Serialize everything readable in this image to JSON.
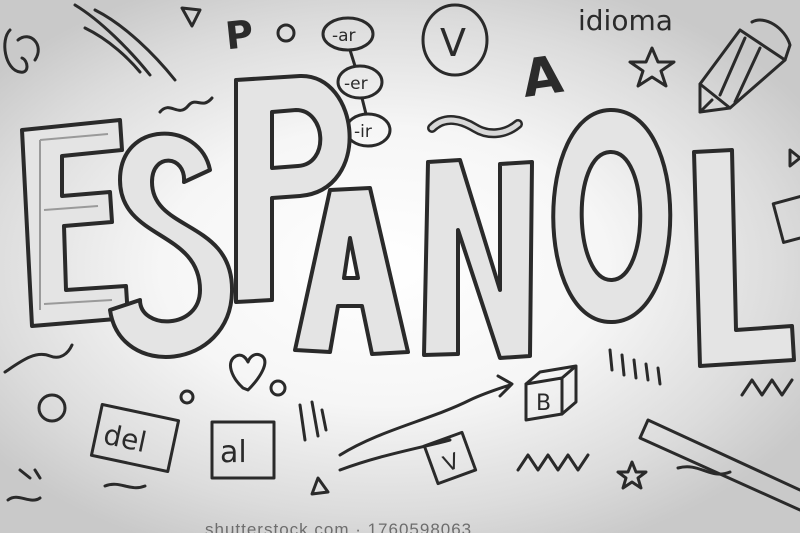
{
  "headline": [
    "E",
    "S",
    "P",
    "A",
    "Ñ",
    "O",
    "L"
  ],
  "doodle_words": {
    "idioma": "idioma",
    "ar": "-ar",
    "er": "-er",
    "ir": "-ir",
    "del": "del",
    "al": "al",
    "block_letter": "B",
    "check_v": "V",
    "check_v2": "V",
    "letter_p": "P",
    "letter_a": "A"
  },
  "watermark": "shutterstock.com · 1760598063",
  "colors": {
    "ink": "#2a2a2a",
    "fill_light": "#d6d6d6",
    "background": "#f4f4f4"
  }
}
